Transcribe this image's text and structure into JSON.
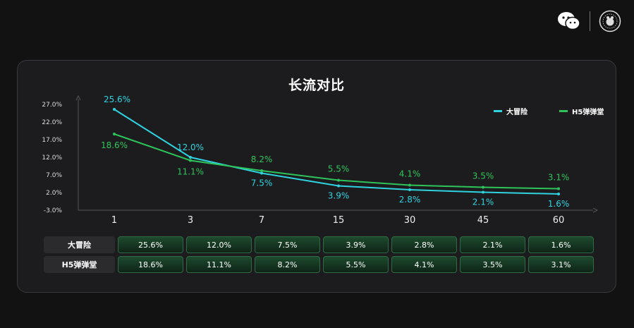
{
  "header": {
    "icons": [
      "wechat-icon",
      "channel-logo"
    ]
  },
  "chart_data": {
    "type": "line",
    "title": "长流对比",
    "categories": [
      "1",
      "3",
      "7",
      "15",
      "30",
      "45",
      "60"
    ],
    "yticks": [
      "27.0%",
      "22.0%",
      "17.0%",
      "12.0%",
      "7.0%",
      "2.0%",
      "-3.0%"
    ],
    "ylim": [
      -3,
      27
    ],
    "series": [
      {
        "name": "大冒险",
        "color": "#2fd3e0",
        "values": [
          25.6,
          12.0,
          7.5,
          3.9,
          2.8,
          2.1,
          1.6
        ],
        "labels": [
          "25.6%",
          "12.0%",
          "7.5%",
          "3.9%",
          "2.8%",
          "2.1%",
          "1.6%"
        ]
      },
      {
        "name": "H5弹弹堂",
        "color": "#2ec45a",
        "values": [
          18.6,
          11.1,
          8.2,
          5.5,
          4.1,
          3.5,
          3.1
        ],
        "labels": [
          "18.6%",
          "11.1%",
          "8.2%",
          "5.5%",
          "4.1%",
          "3.5%",
          "3.1%"
        ]
      }
    ],
    "legend_position": "top-right"
  },
  "table": {
    "rows": [
      {
        "label": "大冒险",
        "cells": [
          "25.6%",
          "12.0%",
          "7.5%",
          "3.9%",
          "2.8%",
          "2.1%",
          "1.6%"
        ]
      },
      {
        "label": "H5弹弹堂",
        "cells": [
          "18.6%",
          "11.1%",
          "8.2%",
          "5.5%",
          "4.1%",
          "3.5%",
          "3.1%"
        ]
      }
    ]
  }
}
